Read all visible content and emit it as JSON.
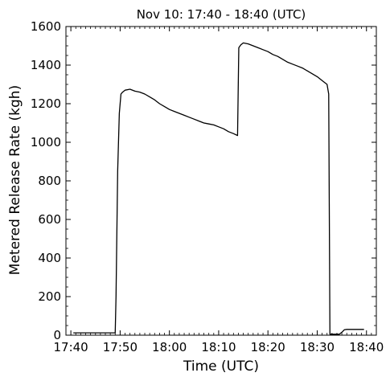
{
  "chart_data": {
    "type": "line",
    "title": "Nov 10: 17:40 - 18:40 (UTC)",
    "xlabel": "Time (UTC)",
    "ylabel": "Metered Release Rate (kgh)",
    "xlim": [
      "17:39",
      "18:42"
    ],
    "ylim": [
      0,
      1600
    ],
    "x_ticks": [
      "17:40",
      "17:50",
      "18:00",
      "18:10",
      "18:20",
      "18:30",
      "18:40"
    ],
    "y_ticks": [
      0,
      200,
      400,
      600,
      800,
      1000,
      1200,
      1400,
      1600
    ],
    "grid": false,
    "legend": "none",
    "line_color": "#000000",
    "series": [
      {
        "x": [
          "17:40:30",
          "17:49:00",
          "17:49:10",
          "17:49:30",
          "17:49:50",
          "17:50:10",
          "17:50:30",
          "17:51:00",
          "17:52:00",
          "17:53:00",
          "17:54:00",
          "17:55:00",
          "17:56:00",
          "17:57:00",
          "17:58:00",
          "17:59:00",
          "18:00:00",
          "18:01:00",
          "18:02:00",
          "18:03:00",
          "18:04:00",
          "18:05:00",
          "18:06:00",
          "18:07:00",
          "18:08:00",
          "18:09:00",
          "18:10:00",
          "18:11:00",
          "18:12:00",
          "18:13:00",
          "18:13:50",
          "18:14:05",
          "18:14:30",
          "18:15:00",
          "18:16:00",
          "18:17:00",
          "18:18:00",
          "18:19:00",
          "18:20:00",
          "18:21:00",
          "18:22:00",
          "18:23:00",
          "18:24:00",
          "18:25:00",
          "18:26:00",
          "18:27:00",
          "18:28:00",
          "18:29:00",
          "18:30:00",
          "18:31:00",
          "18:32:00",
          "18:32:20",
          "18:32:35",
          "18:33:00",
          "18:34:00",
          "18:34:30",
          "18:35:00",
          "18:35:30",
          "18:36:00",
          "18:37:00",
          "18:38:00",
          "18:39:00",
          "18:39:30"
        ],
        "y": [
          12,
          12,
          200,
          850,
          1150,
          1250,
          1260,
          1270,
          1275,
          1265,
          1260,
          1250,
          1235,
          1220,
          1200,
          1185,
          1170,
          1160,
          1150,
          1140,
          1130,
          1120,
          1110,
          1100,
          1095,
          1090,
          1080,
          1070,
          1055,
          1045,
          1035,
          1490,
          1505,
          1515,
          1510,
          1500,
          1490,
          1480,
          1470,
          1455,
          1445,
          1430,
          1415,
          1405,
          1395,
          1385,
          1370,
          1355,
          1340,
          1320,
          1300,
          1250,
          5,
          5,
          5,
          5,
          15,
          28,
          30,
          30,
          30,
          30,
          30
        ]
      }
    ]
  }
}
